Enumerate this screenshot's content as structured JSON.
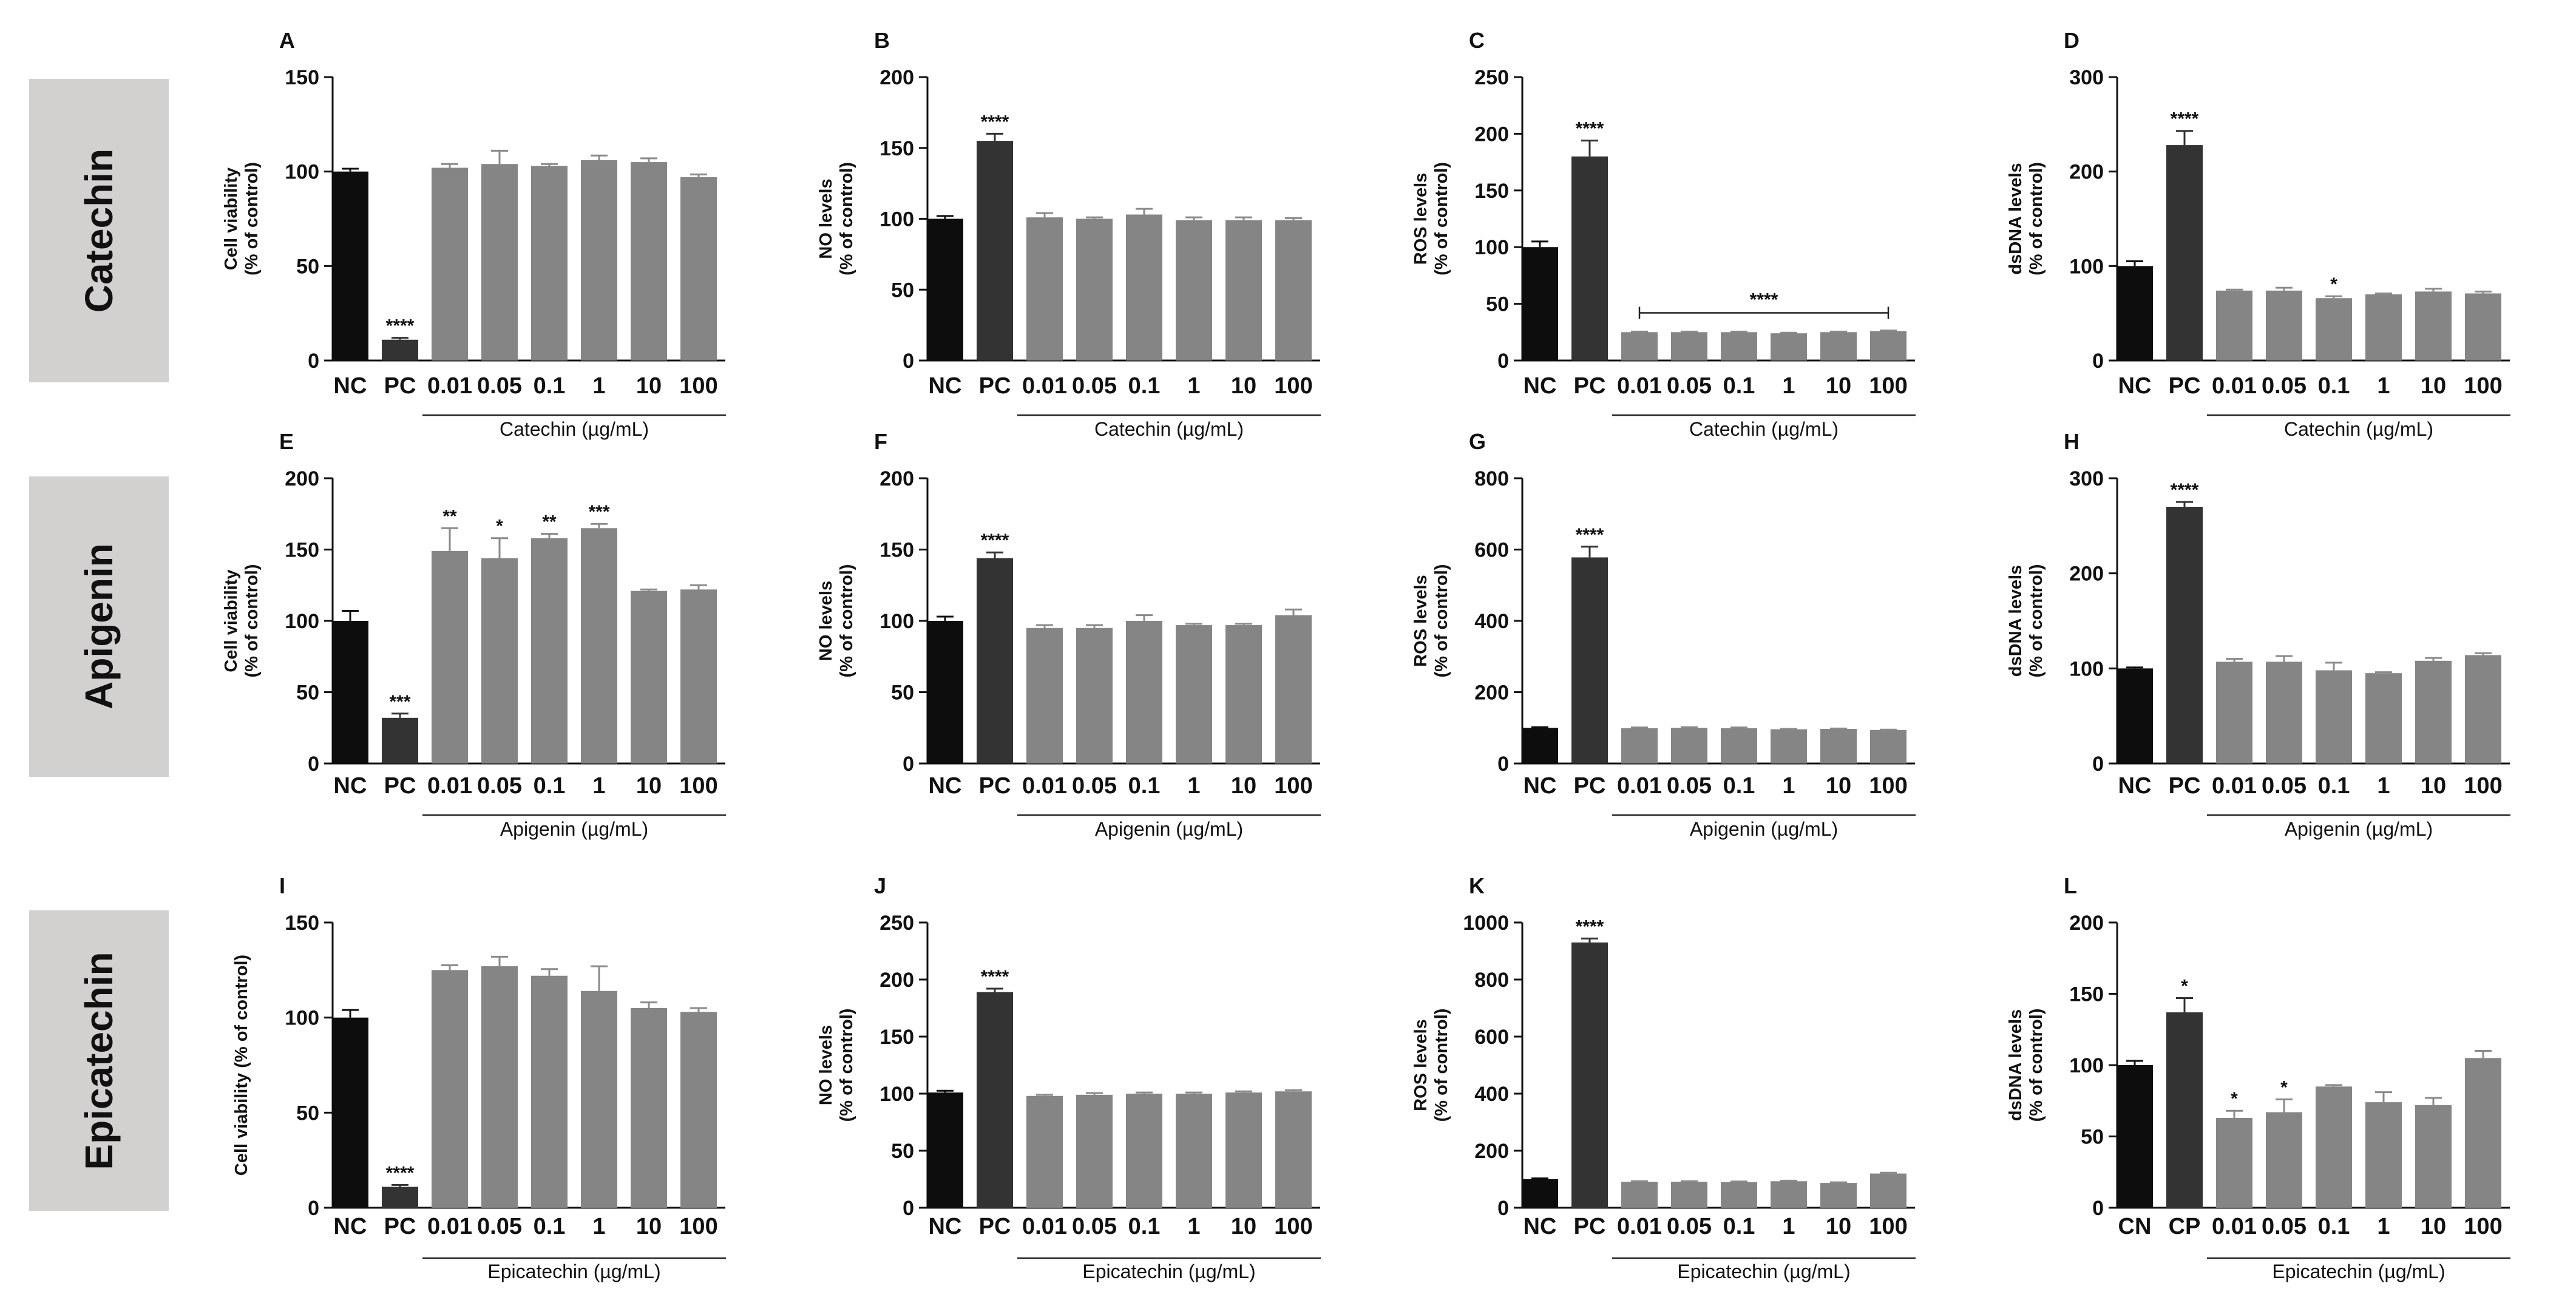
{
  "row_labels": [
    "Catechin",
    "Apigenin",
    "Epicatechin"
  ],
  "colors": {
    "nc": "#0d0d0d",
    "pc": "#333333",
    "treated": "#858585",
    "row_label_bg": "#d3d0d0",
    "axis": "#111111"
  },
  "chart_data": [
    {
      "type": "bar",
      "title": "A",
      "ylabel_lines": [
        "Cell viability",
        "(% of control)"
      ],
      "ylim": [
        0,
        150
      ],
      "yticks": [
        0,
        50,
        100,
        150
      ],
      "categories": [
        "NC",
        "PC",
        "0.01",
        "0.05",
        "0.1",
        "1",
        "10",
        "100"
      ],
      "values": [
        100,
        11,
        102,
        104,
        103,
        106,
        105,
        97
      ],
      "errors": [
        1.5,
        1,
        2,
        7,
        1,
        2.5,
        2,
        1.5
      ],
      "annotations": [
        "",
        "****",
        "",
        "",
        "",
        "",
        "",
        ""
      ],
      "xlabel": "Catechin (µg/mL)"
    },
    {
      "type": "bar",
      "title": "B",
      "ylabel_lines": [
        "NO levels",
        "(% of control)"
      ],
      "ylim": [
        0,
        200
      ],
      "yticks": [
        0,
        50,
        100,
        150,
        200
      ],
      "categories": [
        "NC",
        "PC",
        "0.01",
        "0.05",
        "0.1",
        "1",
        "10",
        "100"
      ],
      "values": [
        100,
        155,
        101,
        100,
        103,
        99,
        99,
        99
      ],
      "errors": [
        2,
        5,
        3,
        1,
        4,
        2,
        2,
        1.5
      ],
      "annotations": [
        "",
        "****",
        "",
        "",
        "",
        "",
        "",
        ""
      ],
      "xlabel": "Catechin (µg/mL)"
    },
    {
      "type": "bar",
      "title": "C",
      "ylabel_lines": [
        "ROS levels",
        "(% of control)"
      ],
      "ylim": [
        0,
        250
      ],
      "yticks": [
        0,
        50,
        100,
        150,
        200,
        250
      ],
      "categories": [
        "NC",
        "PC",
        "0.01",
        "0.05",
        "0.1",
        "1",
        "10",
        "100"
      ],
      "values": [
        100,
        180,
        25,
        25,
        25,
        24,
        25,
        26
      ],
      "errors": [
        5,
        14,
        0.5,
        0.5,
        0.5,
        0.5,
        0.5,
        0.5
      ],
      "annotations": [
        "",
        "****",
        "",
        "",
        "",
        "",
        "",
        ""
      ],
      "bracket": {
        "from": 2,
        "to": 7,
        "level": 42,
        "label": "****"
      },
      "xlabel": "Catechin (µg/mL)"
    },
    {
      "type": "bar",
      "title": "D",
      "ylabel_lines": [
        "dsDNA levels",
        "(% of control)"
      ],
      "ylim": [
        0,
        300
      ],
      "yticks": [
        0,
        100,
        200,
        300
      ],
      "categories": [
        "NC",
        "PC",
        "0.01",
        "0.05",
        "0.1",
        "1",
        "10",
        "100"
      ],
      "values": [
        100,
        228,
        74,
        74,
        66,
        70,
        73,
        71
      ],
      "errors": [
        5,
        15,
        1,
        3,
        2,
        1,
        3,
        2
      ],
      "annotations": [
        "",
        "****",
        "",
        "",
        "*",
        "",
        "",
        ""
      ],
      "xlabel": "Catechin (µg/mL)"
    },
    {
      "type": "bar",
      "title": "E",
      "ylabel_lines": [
        "Cell viability",
        "(% of control)"
      ],
      "ylim": [
        0,
        200
      ],
      "yticks": [
        0,
        50,
        100,
        150,
        200
      ],
      "categories": [
        "NC",
        "PC",
        "0.01",
        "0.05",
        "0.1",
        "1",
        "10",
        "100"
      ],
      "values": [
        100,
        32,
        149,
        144,
        158,
        165,
        121,
        122
      ],
      "errors": [
        7,
        3,
        16,
        14,
        3,
        3,
        1,
        3
      ],
      "annotations": [
        "",
        "***",
        "**",
        "*",
        "**",
        "***",
        "",
        ""
      ],
      "xlabel": "Apigenin (µg/mL)"
    },
    {
      "type": "bar",
      "title": "F",
      "ylabel_lines": [
        "NO levels",
        "(% of control)"
      ],
      "ylim": [
        0,
        200
      ],
      "yticks": [
        0,
        50,
        100,
        150,
        200
      ],
      "categories": [
        "NC",
        "PC",
        "0.01",
        "0.05",
        "0.1",
        "1",
        "10",
        "100"
      ],
      "values": [
        100,
        144,
        95,
        95,
        100,
        97,
        97,
        104
      ],
      "errors": [
        3,
        4,
        2,
        2,
        4,
        1,
        1,
        4
      ],
      "annotations": [
        "",
        "****",
        "",
        "",
        "",
        "",
        "",
        ""
      ],
      "xlabel": "Apigenin (µg/mL)"
    },
    {
      "type": "bar",
      "title": "G",
      "ylabel_lines": [
        "ROS levels",
        "(% of control)"
      ],
      "ylim": [
        0,
        800
      ],
      "yticks": [
        0,
        200,
        400,
        600,
        800
      ],
      "categories": [
        "NC",
        "PC",
        "0.01",
        "0.05",
        "0.1",
        "1",
        "10",
        "100"
      ],
      "values": [
        100,
        578,
        99,
        100,
        99,
        96,
        97,
        94
      ],
      "errors": [
        2,
        30,
        2,
        2,
        2,
        1,
        1,
        1
      ],
      "annotations": [
        "",
        "****",
        "",
        "",
        "",
        "",
        "",
        ""
      ],
      "xlabel": "Apigenin (µg/mL)"
    },
    {
      "type": "bar",
      "title": "H",
      "ylabel_lines": [
        "dsDNA levels",
        "(% of control)"
      ],
      "ylim": [
        0,
        300
      ],
      "yticks": [
        0,
        100,
        200,
        300
      ],
      "categories": [
        "NC",
        "PC",
        "0.01",
        "0.05",
        "0.1",
        "1",
        "10",
        "100"
      ],
      "values": [
        100,
        270,
        107,
        107,
        98,
        95,
        108,
        114
      ],
      "errors": [
        1,
        5,
        3,
        6,
        8,
        1,
        3,
        2
      ],
      "annotations": [
        "",
        "****",
        "",
        "",
        "",
        "",
        "",
        ""
      ],
      "xlabel": "Apigenin (µg/mL)"
    },
    {
      "type": "bar",
      "title": "I",
      "ylabel_lines": [
        "Cell viability (% of control)"
      ],
      "ylim": [
        0,
        150
      ],
      "yticks": [
        0,
        50,
        100,
        150
      ],
      "categories": [
        "NC",
        "PC",
        "0.01",
        "0.05",
        "0.1",
        "1",
        "10",
        "100"
      ],
      "values": [
        100,
        11,
        125,
        127,
        122,
        114,
        105,
        103
      ],
      "errors": [
        4,
        1,
        2.5,
        5,
        3.5,
        13,
        3,
        2
      ],
      "annotations": [
        "",
        "****",
        "",
        "",
        "",
        "",
        "",
        ""
      ],
      "xlabel": "Epicatechin (µg/mL)"
    },
    {
      "type": "bar",
      "title": "J",
      "ylabel_lines": [
        "NO levels",
        "(% of control)"
      ],
      "ylim": [
        0,
        250
      ],
      "yticks": [
        0,
        50,
        100,
        150,
        200,
        250
      ],
      "categories": [
        "NC",
        "PC",
        "0.01",
        "0.05",
        "0.1",
        "1",
        "10",
        "100"
      ],
      "values": [
        101,
        189,
        98,
        99,
        100,
        100,
        101,
        102
      ],
      "errors": [
        1.5,
        3,
        1,
        1.5,
        1,
        1,
        1,
        1
      ],
      "annotations": [
        "",
        "****",
        "",
        "",
        "",
        "",
        "",
        ""
      ],
      "xlabel": "Epicatechin (µg/mL)"
    },
    {
      "type": "bar",
      "title": "K",
      "ylabel_lines": [
        "ROS levels",
        "(% of control)"
      ],
      "ylim": [
        0,
        1000
      ],
      "yticks": [
        0,
        200,
        400,
        600,
        800,
        1000
      ],
      "categories": [
        "NC",
        "PC",
        "0.01",
        "0.05",
        "0.1",
        "1",
        "10",
        "100"
      ],
      "values": [
        100,
        930,
        91,
        91,
        90,
        93,
        87,
        120
      ],
      "errors": [
        3,
        14,
        2,
        2,
        2,
        2,
        2,
        3
      ],
      "annotations": [
        "",
        "****",
        "",
        "",
        "",
        "",
        "",
        ""
      ],
      "xlabel": "Epicatechin (µg/mL)"
    },
    {
      "type": "bar",
      "title": "L",
      "ylabel_lines": [
        "dsDNA levels",
        "(% of control)"
      ],
      "ylim": [
        0,
        200
      ],
      "yticks": [
        0,
        50,
        100,
        150,
        200
      ],
      "categories": [
        "CN",
        "CP",
        "0.01",
        "0.05",
        "0.1",
        "1",
        "10",
        "100"
      ],
      "values": [
        100,
        137,
        63,
        67,
        85,
        74,
        72,
        105
      ],
      "errors": [
        3,
        10,
        5,
        9,
        1,
        7,
        5,
        5
      ],
      "annotations": [
        "",
        "*",
        "*",
        "*",
        "",
        "",
        "",
        ""
      ],
      "xlabel": "Epicatechin (µg/mL)"
    }
  ]
}
